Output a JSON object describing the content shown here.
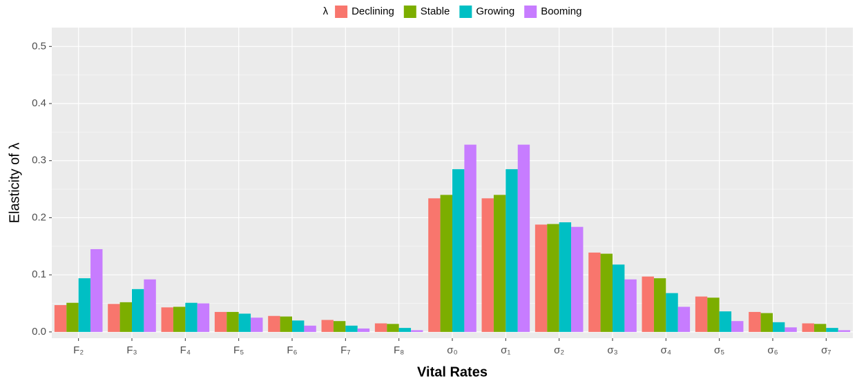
{
  "chart_data": {
    "type": "bar",
    "x_label": "Vital Rates",
    "y_label": "Elasticity of λ",
    "legend_title": "λ",
    "legend_position": "top",
    "grid": true,
    "categories": [
      "F₂",
      "F₃",
      "F₄",
      "F₅",
      "F₆",
      "F₇",
      "F₈",
      "σ₀",
      "σ₁",
      "σ₂",
      "σ₃",
      "σ₄",
      "σ₅",
      "σ₆",
      "σ₇"
    ],
    "series": [
      {
        "name": "Declining",
        "color": "#f8766d",
        "values": [
          0.047,
          0.049,
          0.043,
          0.035,
          0.028,
          0.021,
          0.015,
          0.234,
          0.234,
          0.188,
          0.139,
          0.097,
          0.062,
          0.035,
          0.015
        ]
      },
      {
        "name": "Stable",
        "color": "#7cae00",
        "values": [
          0.051,
          0.052,
          0.044,
          0.035,
          0.027,
          0.019,
          0.014,
          0.24,
          0.24,
          0.189,
          0.137,
          0.094,
          0.06,
          0.033,
          0.014
        ]
      },
      {
        "name": "Growing",
        "color": "#00bfc4",
        "values": [
          0.094,
          0.075,
          0.051,
          0.032,
          0.02,
          0.011,
          0.007,
          0.285,
          0.285,
          0.192,
          0.118,
          0.068,
          0.036,
          0.017,
          0.007
        ]
      },
      {
        "name": "Booming",
        "color": "#c77cff",
        "values": [
          0.145,
          0.092,
          0.05,
          0.025,
          0.011,
          0.006,
          0.003,
          0.328,
          0.328,
          0.184,
          0.092,
          0.044,
          0.019,
          0.008,
          0.003
        ]
      }
    ],
    "ylim": [
      -0.011,
      0.533
    ],
    "yticks": [
      {
        "value": 0,
        "label": "0.0"
      },
      0.1,
      0.2,
      0.3,
      0.4,
      0.5
    ]
  }
}
